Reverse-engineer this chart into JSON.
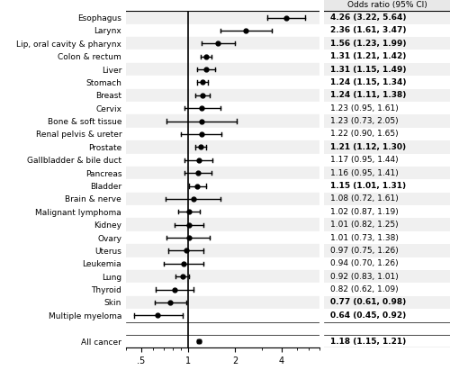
{
  "categories": [
    "Esophagus",
    "Larynx",
    "Lip, oral cavity & pharynx",
    "Colon & rectum",
    "Liver",
    "Stomach",
    "Breast",
    "Cervix",
    "Bone & soft tissue",
    "Renal pelvis & ureter",
    "Prostate",
    "Gallbladder & bile duct",
    "Pancreas",
    "Bladder",
    "Brain & nerve",
    "Malignant lymphoma",
    "Kidney",
    "Ovary",
    "Uterus",
    "Leukemia",
    "Lung",
    "Thyroid",
    "Skin",
    "Multiple myeloma",
    "",
    "All cancer"
  ],
  "or": [
    4.26,
    2.36,
    1.56,
    1.31,
    1.31,
    1.24,
    1.24,
    1.23,
    1.23,
    1.22,
    1.21,
    1.17,
    1.16,
    1.15,
    1.08,
    1.02,
    1.01,
    1.01,
    0.97,
    0.94,
    0.92,
    0.82,
    0.77,
    0.64,
    null,
    1.18
  ],
  "ci_lo": [
    3.22,
    1.61,
    1.23,
    1.21,
    1.15,
    1.15,
    1.11,
    0.95,
    0.73,
    0.9,
    1.12,
    0.95,
    0.95,
    1.01,
    0.72,
    0.87,
    0.82,
    0.73,
    0.75,
    0.7,
    0.83,
    0.62,
    0.61,
    0.45,
    null,
    1.15
  ],
  "ci_hi": [
    5.64,
    3.47,
    1.99,
    1.42,
    1.49,
    1.34,
    1.38,
    1.61,
    2.05,
    1.65,
    1.3,
    1.44,
    1.41,
    1.31,
    1.61,
    1.19,
    1.25,
    1.38,
    1.26,
    1.26,
    1.01,
    1.09,
    0.98,
    0.92,
    null,
    1.21
  ],
  "labels": [
    "4.26 (3.22, 5.64)",
    "2.36 (1.61, 3.47)",
    "1.56 (1.23, 1.99)",
    "1.31 (1.21, 1.42)",
    "1.31 (1.15, 1.49)",
    "1.24 (1.15, 1.34)",
    "1.24 (1.11, 1.38)",
    "1.23 (0.95, 1.61)",
    "1.23 (0.73, 2.05)",
    "1.22 (0.90, 1.65)",
    "1.21 (1.12, 1.30)",
    "1.17 (0.95, 1.44)",
    "1.16 (0.95, 1.41)",
    "1.15 (1.01, 1.31)",
    "1.08 (0.72, 1.61)",
    "1.02 (0.87, 1.19)",
    "1.01 (0.82, 1.25)",
    "1.01 (0.73, 1.38)",
    "0.97 (0.75, 1.26)",
    "0.94 (0.70, 1.26)",
    "0.92 (0.83, 1.01)",
    "0.82 (0.62, 1.09)",
    "0.77 (0.61, 0.98)",
    "0.64 (0.45, 0.92)",
    "",
    "1.18 (1.15, 1.21)"
  ],
  "bold": [
    true,
    true,
    true,
    true,
    true,
    true,
    true,
    false,
    false,
    false,
    true,
    false,
    false,
    true,
    false,
    false,
    false,
    false,
    false,
    false,
    false,
    false,
    true,
    true,
    false,
    true
  ],
  "header": "Odds ratio (95% CI)",
  "bg_header": "#e8e8e8",
  "bg_striped": "#f0f0f0",
  "bg_white": "#ffffff",
  "plot_bg": "#f0f0f0"
}
